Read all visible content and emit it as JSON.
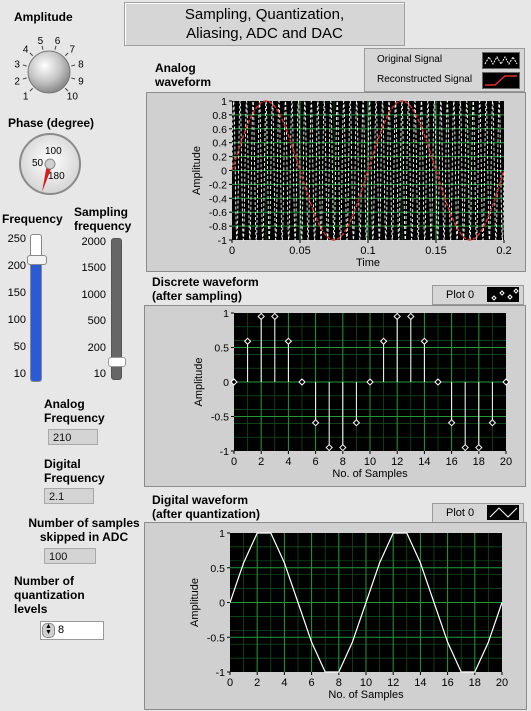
{
  "title": "Sampling, Quantization,\nAliasing, ADC and DAC",
  "controls": {
    "amplitude_label": "Amplitude",
    "amplitude_ticks": [
      "1",
      "2",
      "3",
      "4",
      "5",
      "6",
      "7",
      "8",
      "9",
      "10"
    ],
    "phase_label": "Phase (degree)",
    "phase_ticks": [
      "50",
      "100",
      "180"
    ],
    "frequency_label": "Frequency",
    "frequency_ticks": [
      "250",
      "200",
      "150",
      "100",
      "50",
      "10"
    ],
    "frequency_value": 210,
    "sampling_label": "Sampling\nfrequency",
    "sampling_ticks": [
      "2000",
      "1500",
      "1000",
      "500",
      "200",
      "10"
    ],
    "sampling_value": 100
  },
  "indicators": {
    "analog_frequency_label": "Analog\nFrequency",
    "analog_frequency_value": "210",
    "digital_frequency_label": "Digital\nFrequency",
    "digital_frequency_value": "2.1",
    "samples_skipped_label": "Number of samples\nskipped in ADC",
    "samples_skipped_value": "100",
    "quant_levels_label": "Number of\nquantization\nlevels",
    "quant_levels_value": "8"
  },
  "graphs": {
    "analog": {
      "label": "Analog\nwaveform",
      "legend": [
        "Original Signal",
        "Reconstructed Signal"
      ],
      "colors": {
        "original": "#ffffff",
        "reconstructed": "#e0302a"
      }
    },
    "discrete": {
      "label": "Discrete waveform\n(after sampling)",
      "legend": "Plot 0"
    },
    "digital": {
      "label": "Digital waveform\n(after quantization)",
      "legend": "Plot 0"
    }
  },
  "chart_data": [
    {
      "type": "line",
      "xlabel": "Time",
      "ylabel": "Amplitude",
      "xlim": [
        0,
        0.2
      ],
      "ylim": [
        -1,
        1
      ],
      "x_ticks": [
        "0",
        "0.05",
        "0.1",
        "0.15",
        "0.2"
      ],
      "y_ticks": [
        "1",
        "0.8",
        "0.6",
        "0.4",
        "0.2",
        "0",
        "-0.2",
        "-0.4",
        "-0.6",
        "-0.8",
        "-1"
      ],
      "series": [
        {
          "name": "Original Signal",
          "frequency_hz": 210,
          "amplitude": 1
        },
        {
          "name": "Reconstructed Signal",
          "frequency_hz": 10,
          "amplitude": 1
        }
      ]
    },
    {
      "type": "scatter",
      "xlabel": "No. of Samples",
      "ylabel": "Amplitude",
      "xlim": [
        0,
        20
      ],
      "ylim": [
        -1,
        1
      ],
      "x_ticks": [
        "0",
        "2",
        "4",
        "6",
        "8",
        "10",
        "12",
        "14",
        "16",
        "18",
        "20"
      ],
      "y_ticks": [
        "1",
        "0.5",
        "0",
        "-0.5",
        "-1"
      ],
      "x": [
        0,
        1,
        2,
        3,
        4,
        5,
        6,
        7,
        8,
        9,
        10,
        11,
        12,
        13,
        14,
        15,
        16,
        17,
        18,
        19,
        20
      ],
      "y": [
        0,
        0.59,
        0.95,
        0.95,
        0.59,
        0,
        -0.59,
        -0.95,
        -0.95,
        -0.59,
        0,
        0.59,
        0.95,
        0.95,
        0.59,
        0,
        -0.59,
        -0.95,
        -0.95,
        -0.59,
        0
      ]
    },
    {
      "type": "line",
      "xlabel": "No. of Samples",
      "ylabel": "Amplitude",
      "xlim": [
        0,
        20
      ],
      "ylim": [
        -1,
        1
      ],
      "x_ticks": [
        "0",
        "2",
        "4",
        "6",
        "8",
        "10",
        "12",
        "14",
        "16",
        "18",
        "20"
      ],
      "y_ticks": [
        "1",
        "0.5",
        "0",
        "-0.5",
        "-1"
      ],
      "x": [
        0,
        1,
        2,
        3,
        4,
        5,
        6,
        7,
        8,
        9,
        10,
        11,
        12,
        13,
        14,
        15,
        16,
        17,
        18,
        19,
        20
      ],
      "y": [
        0,
        0.57,
        1,
        1,
        0.57,
        0,
        -0.57,
        -1,
        -1,
        -0.57,
        0,
        0.57,
        1,
        1,
        0.57,
        0,
        -0.57,
        -1,
        -1,
        -0.57,
        0
      ]
    }
  ]
}
